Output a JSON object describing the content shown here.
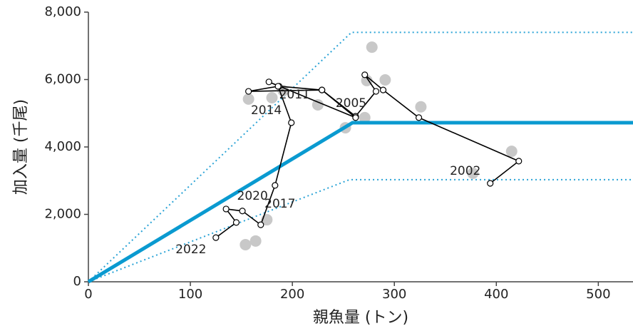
{
  "chart_data": {
    "type": "scatter",
    "x_label": "親魚量 (トン)",
    "y_label": "加入量 (千尾)",
    "xlim": [
      0,
      534
    ],
    "ylim": [
      0,
      8000
    ],
    "xticks": [
      0,
      100,
      200,
      300,
      400,
      500
    ],
    "yticks": [
      0,
      {
        "value": 2000,
        "label": "2,000"
      },
      {
        "value": 4000,
        "label": "4,000"
      },
      {
        "value": 6000,
        "label": "6,000"
      },
      {
        "value": 8000,
        "label": "8,000"
      }
    ],
    "series": [
      {
        "type": "line",
        "style": "dotted",
        "color": "#2aa3d6",
        "x": [
          0,
          258,
          534
        ],
        "y": [
          0,
          7400,
          7400
        ]
      },
      {
        "type": "line",
        "style": "dotted",
        "color": "#2aa3d6",
        "x": [
          0,
          256,
          534
        ],
        "y": [
          0,
          3030,
          3030
        ]
      },
      {
        "type": "scatter",
        "color": "#c8c8c8",
        "x": [
          415,
          377,
          326,
          291,
          278,
          273,
          271,
          252,
          225,
          191,
          180,
          157,
          175,
          154,
          164
        ],
        "y": [
          3870,
          3220,
          5190,
          5990,
          6960,
          5970,
          4870,
          4570,
          5250,
          5670,
          5460,
          5420,
          1840,
          1100,
          1210
        ]
      },
      {
        "type": "line",
        "style": "solid",
        "color": "#0a9ad0",
        "x": [
          0,
          259,
          534
        ],
        "y": [
          0,
          4720,
          4720
        ]
      },
      {
        "type": "path",
        "color": "#000000",
        "x": [
          394,
          422,
          324,
          289,
          271,
          282,
          262,
          229,
          187,
          177,
          262,
          229,
          157,
          186,
          199,
          183,
          169,
          151,
          135,
          145,
          125
        ],
        "y": [
          2920,
          3580,
          4870,
          5690,
          6140,
          5650,
          4910,
          5690,
          5800,
          5930,
          4870,
          5690,
          5650,
          5800,
          4720,
          2860,
          1690,
          2100,
          2160,
          1760,
          1310
        ],
        "labels": [
          "2002",
          null,
          null,
          "2005",
          null,
          null,
          null,
          null,
          null,
          "2011",
          null,
          null,
          "2014",
          null,
          null,
          "2017",
          null,
          null,
          "2020",
          null,
          "2022"
        ]
      }
    ]
  }
}
